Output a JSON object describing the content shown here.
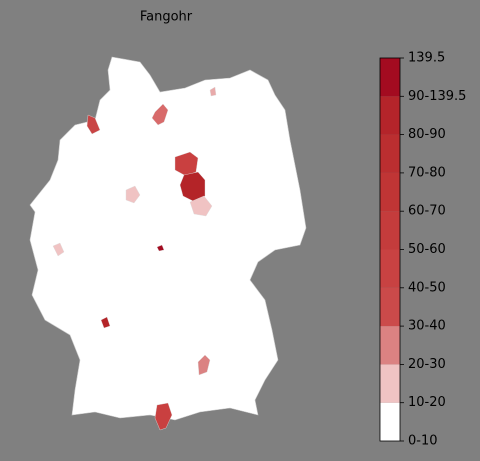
{
  "title": "Fangohr",
  "colorbar": {
    "labels": [
      "0-10",
      "10-20",
      "20-30",
      "30-40",
      "40-50",
      "50-60",
      "60-70",
      "70-80",
      "80-90",
      "90-139.5",
      "139.5"
    ],
    "colors": [
      "#ffffff",
      "#f0c3c3",
      "#db8282",
      "#cb4a4a",
      "#c84242",
      "#c43c3c",
      "#c03535",
      "#bb2e30",
      "#b4242a",
      "#a30b20"
    ]
  }
}
